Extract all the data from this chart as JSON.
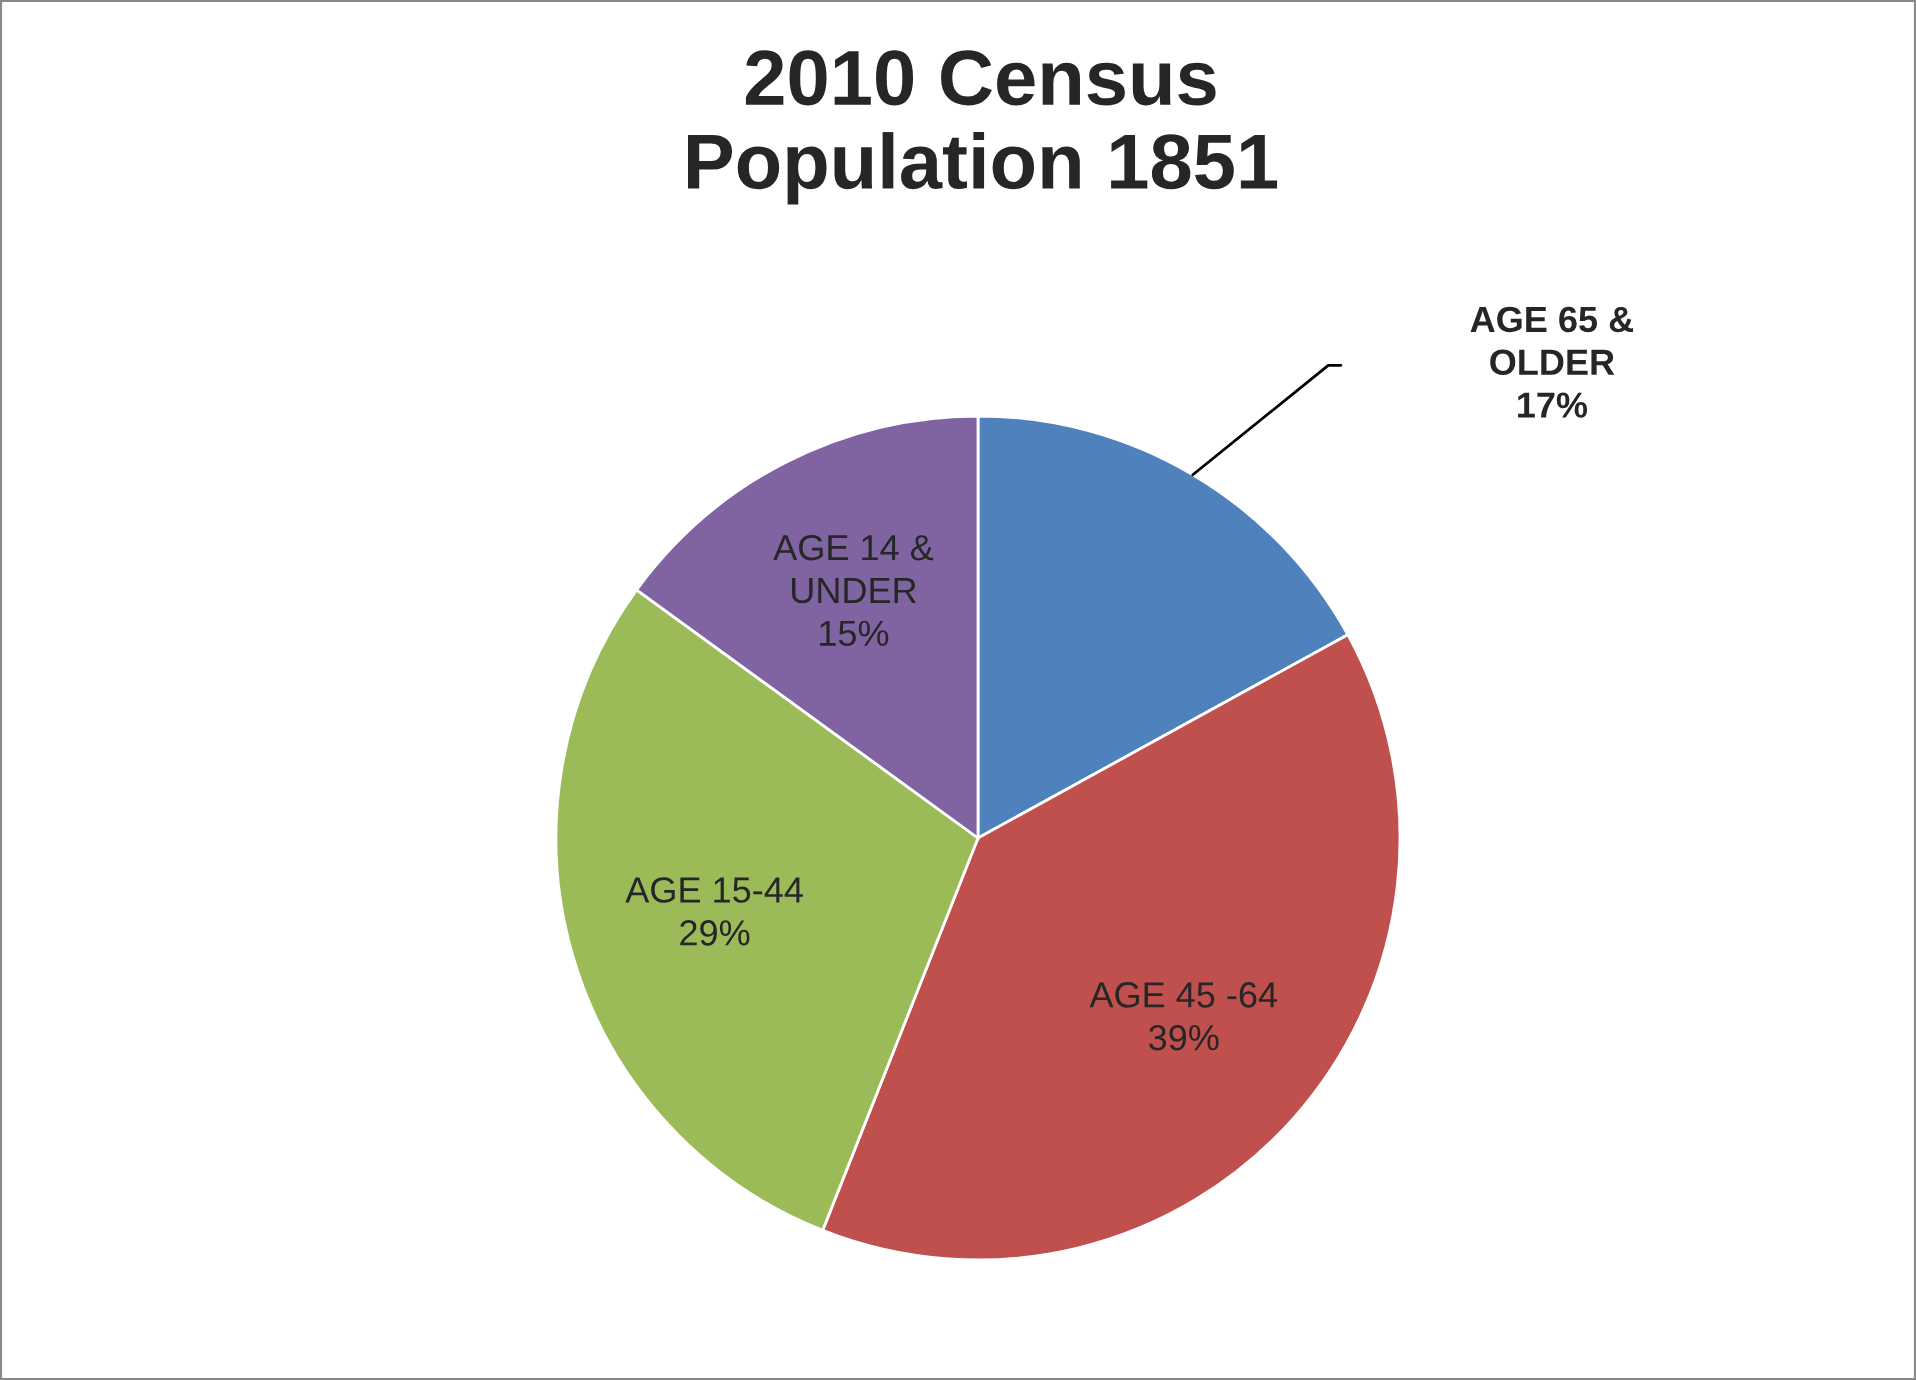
{
  "chart_data": {
    "type": "pie",
    "title": "2010 Census\nPopulation 1851",
    "categories": [
      "AGE 65 &\nOLDER",
      "AGE 45 -64",
      "AGE 15-44",
      "AGE 14 &\nUNDER"
    ],
    "values": [
      17,
      39,
      29,
      15
    ],
    "value_labels": [
      "17%",
      "39%",
      "29%",
      "15%"
    ],
    "colors": [
      "#4f81bd",
      "#c0504d",
      "#9bbb59",
      "#8064a2"
    ]
  }
}
